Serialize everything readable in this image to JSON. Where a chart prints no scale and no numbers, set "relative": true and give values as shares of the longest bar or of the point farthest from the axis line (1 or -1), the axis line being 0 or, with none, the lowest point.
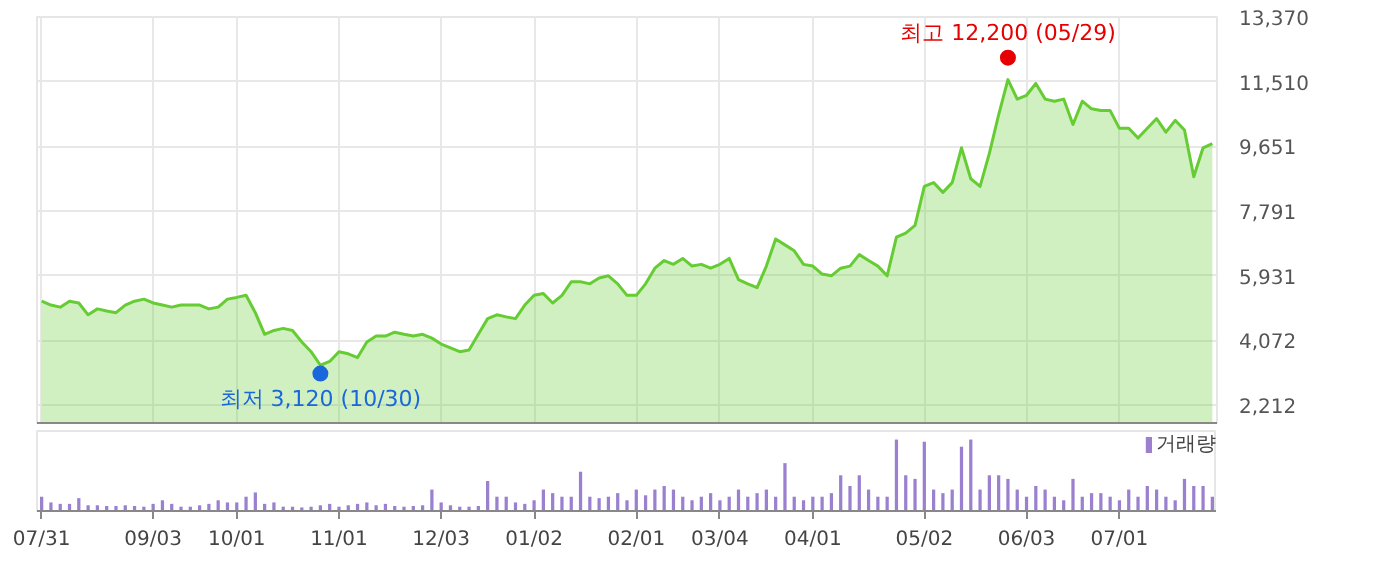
{
  "chart_data": [
    {
      "type": "area",
      "categories": [
        null,
        null,
        null,
        null,
        null,
        null,
        null,
        null,
        null,
        null,
        null,
        null,
        null,
        null,
        null,
        null,
        null,
        null,
        null,
        null,
        null,
        null,
        null,
        null,
        null,
        null,
        null,
        null,
        null,
        null,
        null,
        null,
        null,
        null,
        null,
        null,
        null,
        null,
        null,
        null,
        null,
        null,
        null,
        null,
        null,
        null,
        null,
        null,
        null,
        null,
        null,
        null,
        null,
        null,
        null,
        null,
        null,
        null,
        null,
        null,
        null,
        null,
        null,
        null,
        null,
        null,
        null,
        null,
        null,
        null,
        null,
        null,
        null,
        null,
        null,
        null,
        null,
        null,
        null,
        null,
        null,
        null,
        null,
        null,
        null,
        null,
        null,
        null,
        null,
        null,
        null,
        null,
        null,
        null,
        null,
        null,
        null,
        null,
        null,
        null,
        null,
        null,
        null,
        null,
        null,
        null,
        null,
        null,
        null,
        null,
        null,
        null,
        null,
        null,
        null,
        null,
        null,
        null,
        null,
        null,
        null,
        null,
        null,
        null,
        null,
        null,
        null
      ],
      "series": [
        {
          "color": "#66cc33",
          "values": [
            5200,
            5090,
            5030,
            5200,
            5150,
            4810,
            4980,
            4920,
            4870,
            5090,
            5200,
            5260,
            5150,
            5090,
            5030,
            5090,
            5090,
            5090,
            4980,
            5030,
            5260,
            5310,
            5370,
            4870,
            4250,
            4360,
            4420,
            4360,
            4030,
            3750,
            3360,
            3470,
            3750,
            3690,
            3580,
            4030,
            4200,
            4200,
            4310,
            4250,
            4200,
            4250,
            4140,
            3970,
            3860,
            3750,
            3800,
            4250,
            4700,
            4810,
            4750,
            4700,
            5090,
            5370,
            5420,
            5150,
            5370,
            5760,
            5760,
            5700,
            5870,
            5930,
            5700,
            5370,
            5370,
            5700,
            6150,
            6370,
            6260,
            6430,
            6210,
            6260,
            6150,
            6260,
            6430,
            5820,
            5700,
            5590,
            6210,
            6990,
            6820,
            6650,
            6260,
            6210,
            5980,
            5930,
            6150,
            6210,
            6540,
            6370,
            6210,
            5930,
            7040,
            7160,
            7380,
            8500,
            8610,
            8330,
            8610,
            9610,
            8720,
            8500,
            9450,
            10560,
            11570,
            11010,
            11120,
            11460,
            11010,
            10950,
            11010,
            10280,
            10950,
            10730,
            10680,
            10680,
            10170,
            10170,
            9890,
            10170,
            10450,
            10060,
            10400,
            10120,
            8780,
            9610,
            9730
          ]
        }
      ],
      "ylim": [
        1700,
        13370
      ],
      "yticks": [
        {
          "value": 2212,
          "label": "2,212"
        },
        {
          "value": 4072,
          "label": "4,072"
        },
        {
          "value": 5931,
          "label": "5,931"
        },
        {
          "value": 7791,
          "label": "7,791"
        },
        {
          "value": 9651,
          "label": "9,651"
        },
        {
          "value": 11510,
          "label": "11,510"
        },
        {
          "value": 13370,
          "label": "13,370"
        }
      ],
      "grid": true,
      "tick_labels": "y",
      "annotations": [
        {
          "text": "최고 12,200 (05/29)",
          "y": 12200
        },
        {
          "text": "최저 3,120 (10/30)",
          "y": 3120
        }
      ]
    },
    {
      "type": "bar",
      "relative": true,
      "categories": [
        "07/31",
        null,
        null,
        null,
        null,
        null,
        null,
        null,
        null,
        null,
        null,
        null,
        "09/03",
        null,
        null,
        null,
        null,
        null,
        null,
        null,
        null,
        "10/01",
        null,
        null,
        null,
        null,
        null,
        null,
        null,
        null,
        null,
        null,
        "11/01",
        null,
        null,
        null,
        null,
        null,
        null,
        null,
        null,
        null,
        null,
        "12/03",
        null,
        null,
        null,
        null,
        null,
        null,
        null,
        null,
        null,
        "01/02",
        null,
        null,
        null,
        null,
        null,
        null,
        null,
        null,
        null,
        null,
        "02/01",
        null,
        null,
        null,
        null,
        null,
        null,
        null,
        null,
        "03/04",
        null,
        null,
        null,
        null,
        null,
        null,
        null,
        null,
        null,
        "04/01",
        null,
        null,
        null,
        null,
        null,
        null,
        null,
        null,
        null,
        null,
        null,
        "05/02",
        null,
        null,
        null,
        null,
        null,
        null,
        null,
        null,
        null,
        null,
        "06/03",
        null,
        null,
        null,
        null,
        null,
        null,
        null,
        null,
        null,
        "07/01",
        null,
        null,
        null,
        null,
        null,
        null,
        null,
        null,
        null,
        null
      ],
      "series": [
        {
          "name": "거래량",
          "color": "#9b80d0",
          "values": [
            0.2,
            0.12,
            0.1,
            0.1,
            0.18,
            0.08,
            0.08,
            0.07,
            0.07,
            0.08,
            0.07,
            0.06,
            0.1,
            0.15,
            0.1,
            0.06,
            0.06,
            0.08,
            0.1,
            0.15,
            0.12,
            0.12,
            0.2,
            0.26,
            0.1,
            0.12,
            0.06,
            0.06,
            0.05,
            0.06,
            0.08,
            0.1,
            0.06,
            0.08,
            0.1,
            0.12,
            0.08,
            0.1,
            0.07,
            0.06,
            0.07,
            0.08,
            0.3,
            0.12,
            0.08,
            0.06,
            0.06,
            0.07,
            0.42,
            0.2,
            0.2,
            0.12,
            0.1,
            0.15,
            0.3,
            0.25,
            0.2,
            0.2,
            0.55,
            0.2,
            0.18,
            0.2,
            0.25,
            0.15,
            0.3,
            0.22,
            0.3,
            0.35,
            0.3,
            0.2,
            0.15,
            0.2,
            0.25,
            0.15,
            0.2,
            0.3,
            0.2,
            0.25,
            0.3,
            0.2,
            0.67,
            0.2,
            0.15,
            0.2,
            0.2,
            0.25,
            0.5,
            0.35,
            0.5,
            0.3,
            0.2,
            0.2,
            1.0,
            0.5,
            0.45,
            0.97,
            0.3,
            0.25,
            0.3,
            0.9,
            1.0,
            0.3,
            0.5,
            0.5,
            0.45,
            0.3,
            0.2,
            0.35,
            0.3,
            0.2,
            0.15,
            0.45,
            0.2,
            0.25,
            0.25,
            0.2,
            0.15,
            0.3,
            0.2,
            0.35,
            0.3,
            0.2,
            0.15,
            0.45,
            0.35,
            0.35,
            0.2
          ]
        }
      ],
      "legend": "top right"
    }
  ]
}
